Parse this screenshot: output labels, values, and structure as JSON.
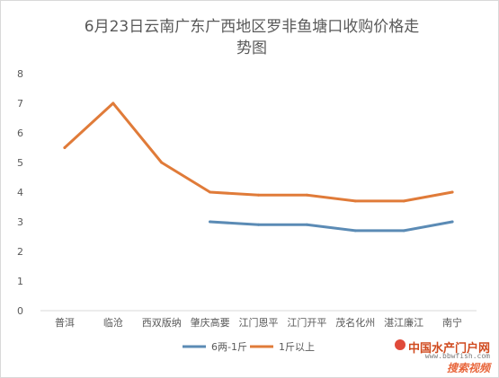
{
  "chart_data": {
    "type": "line",
    "title": "6月23日云南广东广西地区罗非鱼塘口收购价格走势图",
    "title_lines": [
      "6月23日云南广东广西地区罗非鱼塘口收购价格走",
      "势图"
    ],
    "categories": [
      "普洱",
      "临沧",
      "西双版纳",
      "肇庆高要",
      "江门恩平",
      "江门开平",
      "茂名化州",
      "湛江廉江",
      "南宁"
    ],
    "ylim": [
      0,
      8
    ],
    "yticks": [
      0,
      1,
      2,
      3,
      4,
      5,
      6,
      7,
      8
    ],
    "grid": false,
    "legend_position": "bottom",
    "series": [
      {
        "name": "6两-1斤",
        "color": "#5b8bb5",
        "values": [
          null,
          null,
          null,
          3.0,
          2.9,
          2.9,
          2.7,
          2.7,
          3.0
        ]
      },
      {
        "name": "1斤以上",
        "color": "#e07b39",
        "values": [
          5.5,
          7.0,
          5.0,
          4.0,
          3.9,
          3.9,
          3.7,
          3.7,
          4.0
        ]
      }
    ]
  },
  "watermark": {
    "line1": "中国水产门户网",
    "line2": "www.bbwfish.com",
    "line3": "搜索视频"
  }
}
